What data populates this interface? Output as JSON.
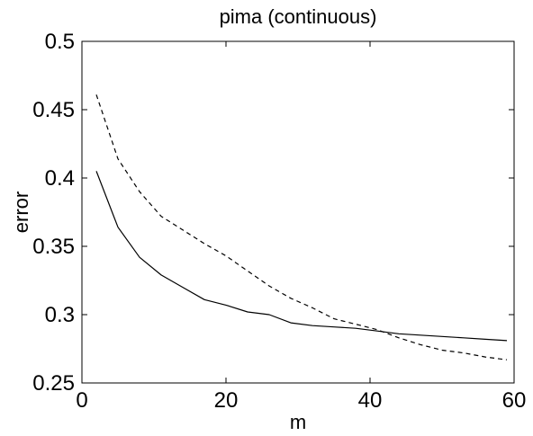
{
  "chart_data": {
    "type": "line",
    "title": "pima (continuous)",
    "xlabel": "m",
    "ylabel": "error",
    "xlim": [
      0,
      60
    ],
    "ylim": [
      0.25,
      0.5
    ],
    "xticks": [
      0,
      20,
      40,
      60
    ],
    "xtick_labels": [
      "0",
      "20",
      "40",
      "60"
    ],
    "yticks": [
      0.25,
      0.3,
      0.35,
      0.4,
      0.45,
      0.5
    ],
    "ytick_labels": [
      "0.25",
      "0.3",
      "0.35",
      "0.4",
      "0.45",
      "0.5"
    ],
    "grid": false,
    "legend": null,
    "series": [
      {
        "style": "solid",
        "color": "#000000",
        "x": [
          2,
          5,
          8,
          11,
          14,
          17,
          20,
          23,
          26,
          29,
          32,
          35,
          38,
          41,
          44,
          47,
          50,
          53,
          56,
          59
        ],
        "y": [
          0.405,
          0.364,
          0.342,
          0.329,
          0.32,
          0.311,
          0.307,
          0.302,
          0.3,
          0.294,
          0.292,
          0.291,
          0.29,
          0.288,
          0.286,
          0.285,
          0.284,
          0.283,
          0.282,
          0.281
        ]
      },
      {
        "style": "dashed",
        "color": "#000000",
        "x": [
          2,
          5,
          8,
          11,
          14,
          17,
          20,
          23,
          26,
          29,
          32,
          35,
          38,
          41,
          44,
          47,
          50,
          53,
          56,
          59
        ],
        "y": [
          0.461,
          0.414,
          0.39,
          0.372,
          0.362,
          0.352,
          0.343,
          0.332,
          0.321,
          0.312,
          0.305,
          0.297,
          0.293,
          0.289,
          0.283,
          0.278,
          0.274,
          0.272,
          0.269,
          0.267
        ]
      }
    ]
  }
}
